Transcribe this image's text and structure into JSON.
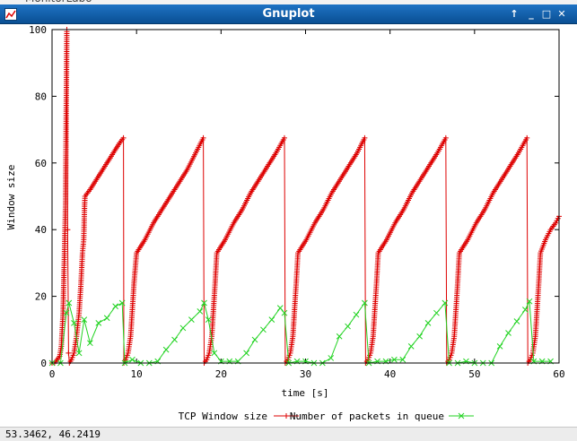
{
  "window": {
    "title": "Gnuplot",
    "buttons": {
      "up": "↑",
      "minimize": "_",
      "maximize": "□",
      "close": "✕"
    }
  },
  "status": {
    "coords": "53.3462,  46.2419"
  },
  "colors": {
    "series1": "#dd0000",
    "series2": "#22d322",
    "titlebar": "#1565b7"
  },
  "chart_data": {
    "type": "line",
    "xlabel": "time [s]",
    "ylabel": "Window size",
    "xlim": [
      0,
      60
    ],
    "ylim": [
      0,
      100
    ],
    "xticks": [
      0,
      10,
      20,
      30,
      40,
      50,
      60
    ],
    "yticks": [
      0,
      20,
      40,
      60,
      80,
      100
    ],
    "legend_position": "bottom",
    "series": [
      {
        "name": "TCP Window size",
        "marker": "plus",
        "x": [
          0.0,
          0.3,
          0.6,
          0.9,
          1.1,
          1.3,
          1.45,
          1.6,
          1.75,
          1.85,
          1.95,
          2.05,
          2.3,
          2.6,
          2.9,
          3.2,
          3.4,
          3.6,
          3.75,
          3.85,
          3.9,
          4.5,
          5.0,
          5.5,
          6.0,
          6.5,
          7.0,
          7.5,
          8.0,
          8.45,
          8.5,
          8.7,
          9.0,
          9.3,
          9.5,
          9.7,
          10.0,
          11.0,
          12.0,
          13.0,
          14.0,
          15.0,
          16.0,
          17.0,
          17.9,
          18.0,
          18.3,
          18.6,
          18.9,
          19.1,
          19.3,
          19.5,
          20.5,
          21.5,
          22.5,
          23.5,
          24.5,
          25.5,
          26.5,
          27.5,
          27.6,
          27.9,
          28.2,
          28.5,
          28.7,
          28.9,
          29.1,
          30.1,
          31.1,
          32.1,
          33.1,
          34.1,
          35.1,
          36.1,
          37.0,
          37.1,
          37.4,
          37.7,
          38.0,
          38.2,
          38.4,
          38.6,
          39.6,
          40.6,
          41.6,
          42.6,
          43.6,
          44.6,
          45.6,
          46.6,
          46.7,
          47.0,
          47.3,
          47.6,
          47.8,
          48.0,
          48.2,
          49.2,
          50.2,
          51.2,
          52.2,
          53.2,
          54.2,
          55.2,
          56.2,
          56.3,
          56.6,
          56.9,
          57.2,
          57.4,
          57.6,
          57.8,
          58.4,
          59.0,
          59.6,
          60.0
        ],
        "y": [
          0,
          0,
          1,
          2,
          5,
          15,
          31,
          48,
          100,
          40,
          3,
          0,
          1,
          3,
          8,
          15,
          23,
          33,
          37,
          47,
          50,
          52,
          54,
          56,
          58,
          60,
          62,
          64,
          66,
          67.5,
          0,
          1,
          3,
          8,
          16,
          24,
          33,
          37,
          42,
          46,
          50,
          54,
          58,
          63,
          67.5,
          0,
          1,
          3,
          8,
          16,
          24,
          33,
          37,
          42,
          46,
          51,
          55,
          59,
          63,
          67.5,
          0,
          1,
          3,
          8,
          16,
          24,
          33,
          37,
          42,
          46,
          51,
          55,
          59,
          63,
          67.5,
          0,
          1,
          3,
          8,
          16,
          24,
          33,
          37,
          42,
          46,
          51,
          55,
          59,
          63,
          67.5,
          0,
          1,
          3,
          8,
          16,
          24,
          33,
          37,
          42,
          46,
          51,
          55,
          59,
          63,
          67.5,
          0,
          1,
          3,
          8,
          16,
          24,
          33,
          37,
          40,
          42,
          44
        ]
      },
      {
        "name": "Number of packets in queue",
        "marker": "cross",
        "x": [
          0,
          1.0,
          1.7,
          2.0,
          2.6,
          3.2,
          3.8,
          4.5,
          5.5,
          6.5,
          7.5,
          8.3,
          8.6,
          9.5,
          10.5,
          11.5,
          12.5,
          13.5,
          14.5,
          15.5,
          16.5,
          17.5,
          18.0,
          18.5,
          19.2,
          20.0,
          21.0,
          22.0,
          23.0,
          24.0,
          25.0,
          26.0,
          27.0,
          27.5,
          28.0,
          29.0,
          30.0,
          31.0,
          32.0,
          33.0,
          34.0,
          35.0,
          36.0,
          37.0,
          37.5,
          38.5,
          39.5,
          40.5,
          41.5,
          42.5,
          43.5,
          44.5,
          45.5,
          46.5,
          47.0,
          48.0,
          49.0,
          50.0,
          51.0,
          52.0,
          53.0,
          54.0,
          55.0,
          56.0,
          56.5,
          57.0,
          58.0,
          59.0
        ],
        "y": [
          0,
          0,
          15,
          18,
          12,
          3,
          13,
          6,
          12,
          13.5,
          17,
          18,
          0,
          1,
          0,
          0,
          0.5,
          4,
          7,
          10.5,
          13,
          15.5,
          18,
          13,
          3,
          0.5,
          0.5,
          0.5,
          3,
          7,
          10,
          13,
          16.5,
          15,
          0,
          0.5,
          0.5,
          0,
          0,
          1.5,
          8,
          11,
          14.5,
          18,
          0,
          0.5,
          0.5,
          1,
          1,
          5,
          8,
          12,
          15,
          18,
          0,
          0,
          0.5,
          0,
          0,
          0,
          5,
          9,
          12.5,
          16,
          18.5,
          0.5,
          0.5,
          0.5
        ]
      }
    ]
  }
}
